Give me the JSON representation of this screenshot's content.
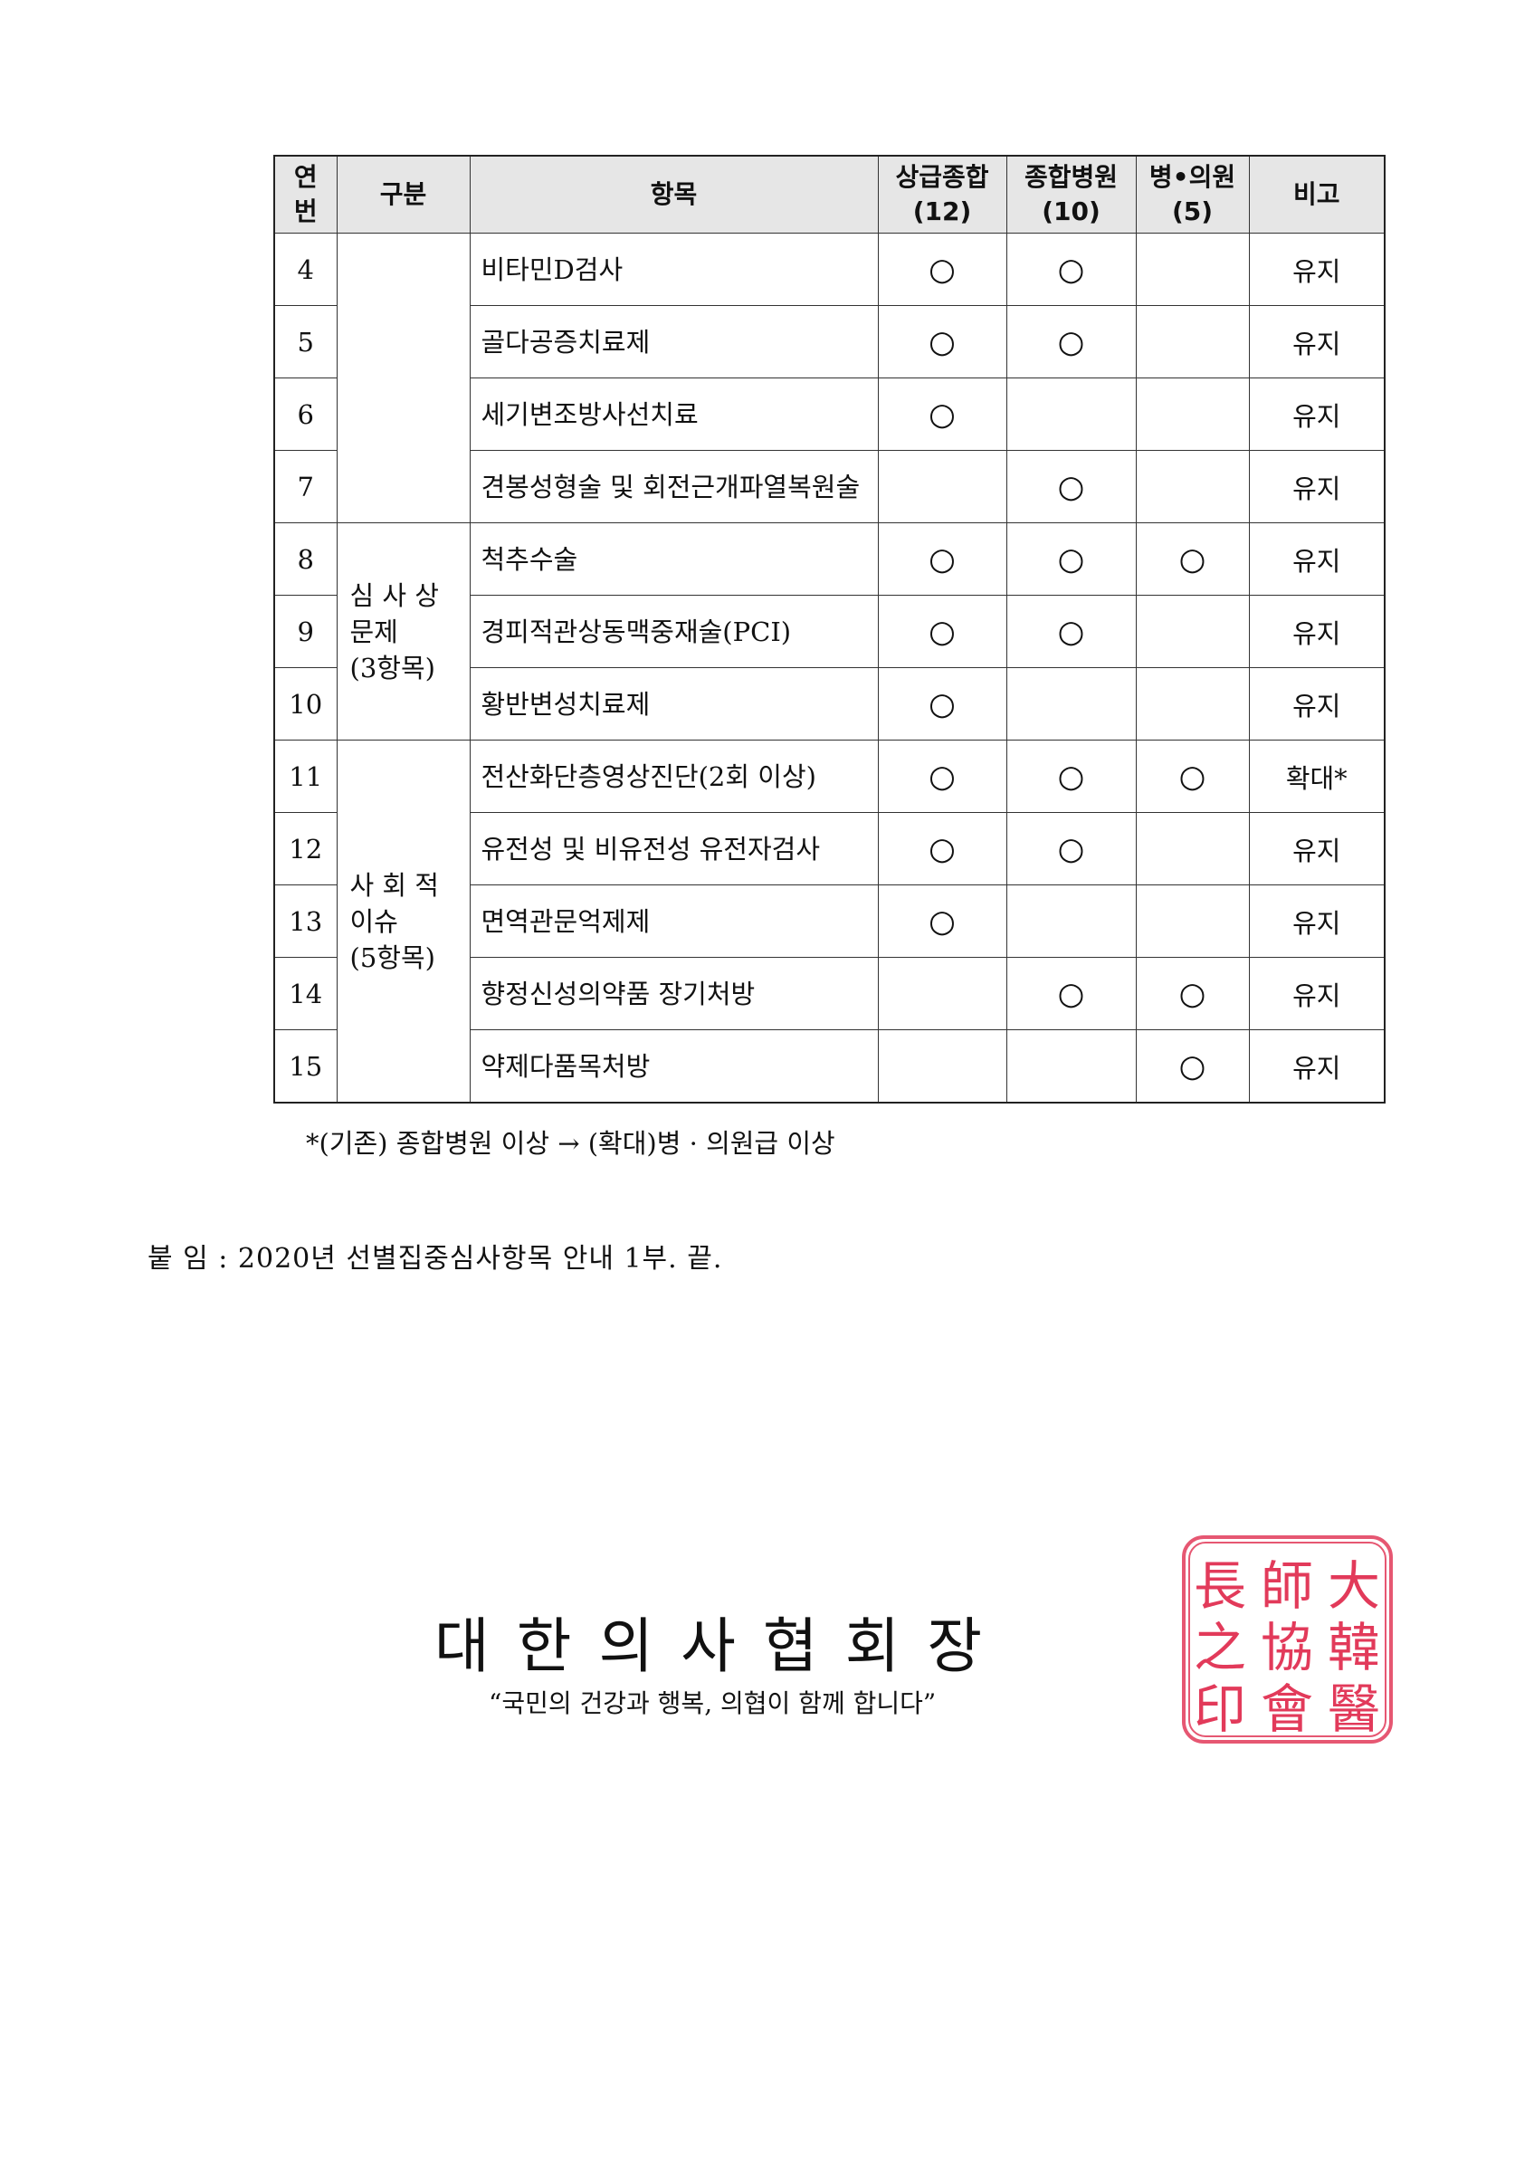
{
  "table": {
    "headers": [
      "연\n번",
      "구분",
      "항목",
      "상급종합\n(12)",
      "종합병원\n(10)",
      "병•의원\n(5)",
      "비고"
    ],
    "groups": [
      {
        "label": "",
        "start": 0,
        "span": 4
      },
      {
        "label": "심 사 상\n문제\n(3항목)",
        "start": 4,
        "span": 3
      },
      {
        "label": "사 회 적\n이슈\n(5항목)",
        "start": 7,
        "span": 5
      }
    ],
    "rows": [
      {
        "no": "4",
        "item": "비타민D검사",
        "tertiary": "○",
        "general": "○",
        "clinic": "",
        "note": "유지"
      },
      {
        "no": "5",
        "item": "골다공증치료제",
        "tertiary": "○",
        "general": "○",
        "clinic": "",
        "note": "유지"
      },
      {
        "no": "6",
        "item": "세기변조방사선치료",
        "tertiary": "○",
        "general": "",
        "clinic": "",
        "note": "유지"
      },
      {
        "no": "7",
        "item": "견봉성형술 및 회전근개파열복원술",
        "tertiary": "",
        "general": "○",
        "clinic": "",
        "note": "유지"
      },
      {
        "no": "8",
        "item": "척추수술",
        "tertiary": "○",
        "general": "○",
        "clinic": "○",
        "note": "유지"
      },
      {
        "no": "9",
        "item": "경피적관상동맥중재술(PCI)",
        "tertiary": "○",
        "general": "○",
        "clinic": "",
        "note": "유지"
      },
      {
        "no": "10",
        "item": "황반변성치료제",
        "tertiary": "○",
        "general": "",
        "clinic": "",
        "note": "유지"
      },
      {
        "no": "11",
        "item": "전산화단층영상진단(2회 이상)",
        "tertiary": "○",
        "general": "○",
        "clinic": "○",
        "note": "확대*"
      },
      {
        "no": "12",
        "item": "유전성 및 비유전성 유전자검사",
        "tertiary": "○",
        "general": "○",
        "clinic": "",
        "note": "유지"
      },
      {
        "no": "13",
        "item": "면역관문억제제",
        "tertiary": "○",
        "general": "",
        "clinic": "",
        "note": "유지"
      },
      {
        "no": "14",
        "item": "향정신성의약품 장기처방",
        "tertiary": "",
        "general": "○",
        "clinic": "○",
        "note": "유지"
      },
      {
        "no": "15",
        "item": "약제다품목처방",
        "tertiary": "",
        "general": "",
        "clinic": "○",
        "note": "유지"
      }
    ]
  },
  "footnote": "*(기존) 종합병원 이상 → (확대)병 · 의원급 이상",
  "attachment": "붙 임 : 2020년 선별집중심사항목 안내 1부.  끝.",
  "signature": {
    "title": "대한의사협회장",
    "slogan": "“국민의 건강과 행복, 의협이 함께 합니다”",
    "seal_text": "大韓醫師協會長之印",
    "seal_color": "#e23a5a"
  }
}
